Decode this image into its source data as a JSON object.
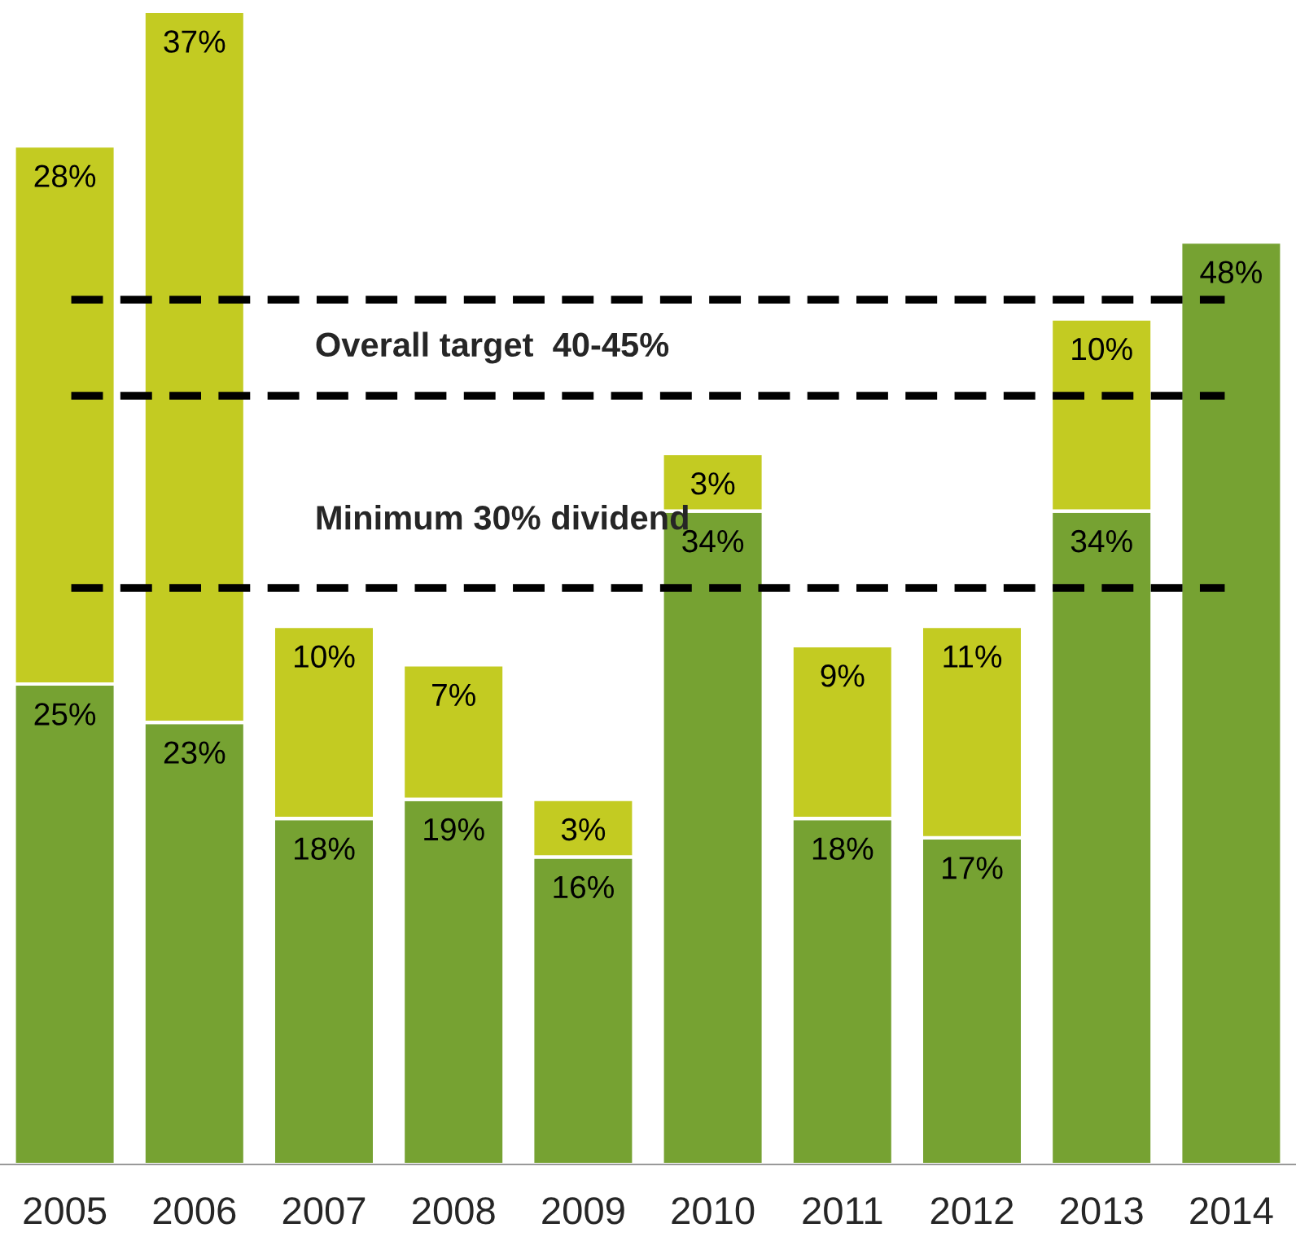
{
  "chart_data": {
    "type": "bar",
    "stacked": true,
    "tick_labels": "x",
    "categories": [
      "2005",
      "2006",
      "2007",
      "2008",
      "2009",
      "2010",
      "2011",
      "2012",
      "2013",
      "2014"
    ],
    "series": [
      {
        "color": "#76a232",
        "values": [
          25,
          23,
          18,
          19,
          16,
          34,
          18,
          17,
          34,
          48
        ],
        "value_labels": [
          "25%",
          "23%",
          "18%",
          "19%",
          "16%",
          "34%",
          "18%",
          "17%",
          "34%",
          "48%"
        ]
      },
      {
        "color": "#c3cb22",
        "values": [
          28,
          37,
          10,
          7,
          3,
          3,
          9,
          11,
          10,
          null
        ],
        "value_labels": [
          "28%",
          "37%",
          "10%",
          "7%",
          "3%",
          "3%",
          "9%",
          "11%",
          "10%",
          null
        ]
      }
    ],
    "ref_lines": [
      {
        "axis": "y",
        "value": 45,
        "label": "Overall target  40-45%",
        "color": "#000000",
        "line_style": "dashed"
      },
      {
        "axis": "y",
        "value": 40,
        "color": "#000000",
        "line_style": "dashed"
      },
      {
        "axis": "y",
        "value": 30,
        "label": "Minimum 30% dividend",
        "color": "#000000",
        "line_style": "dashed"
      }
    ]
  }
}
